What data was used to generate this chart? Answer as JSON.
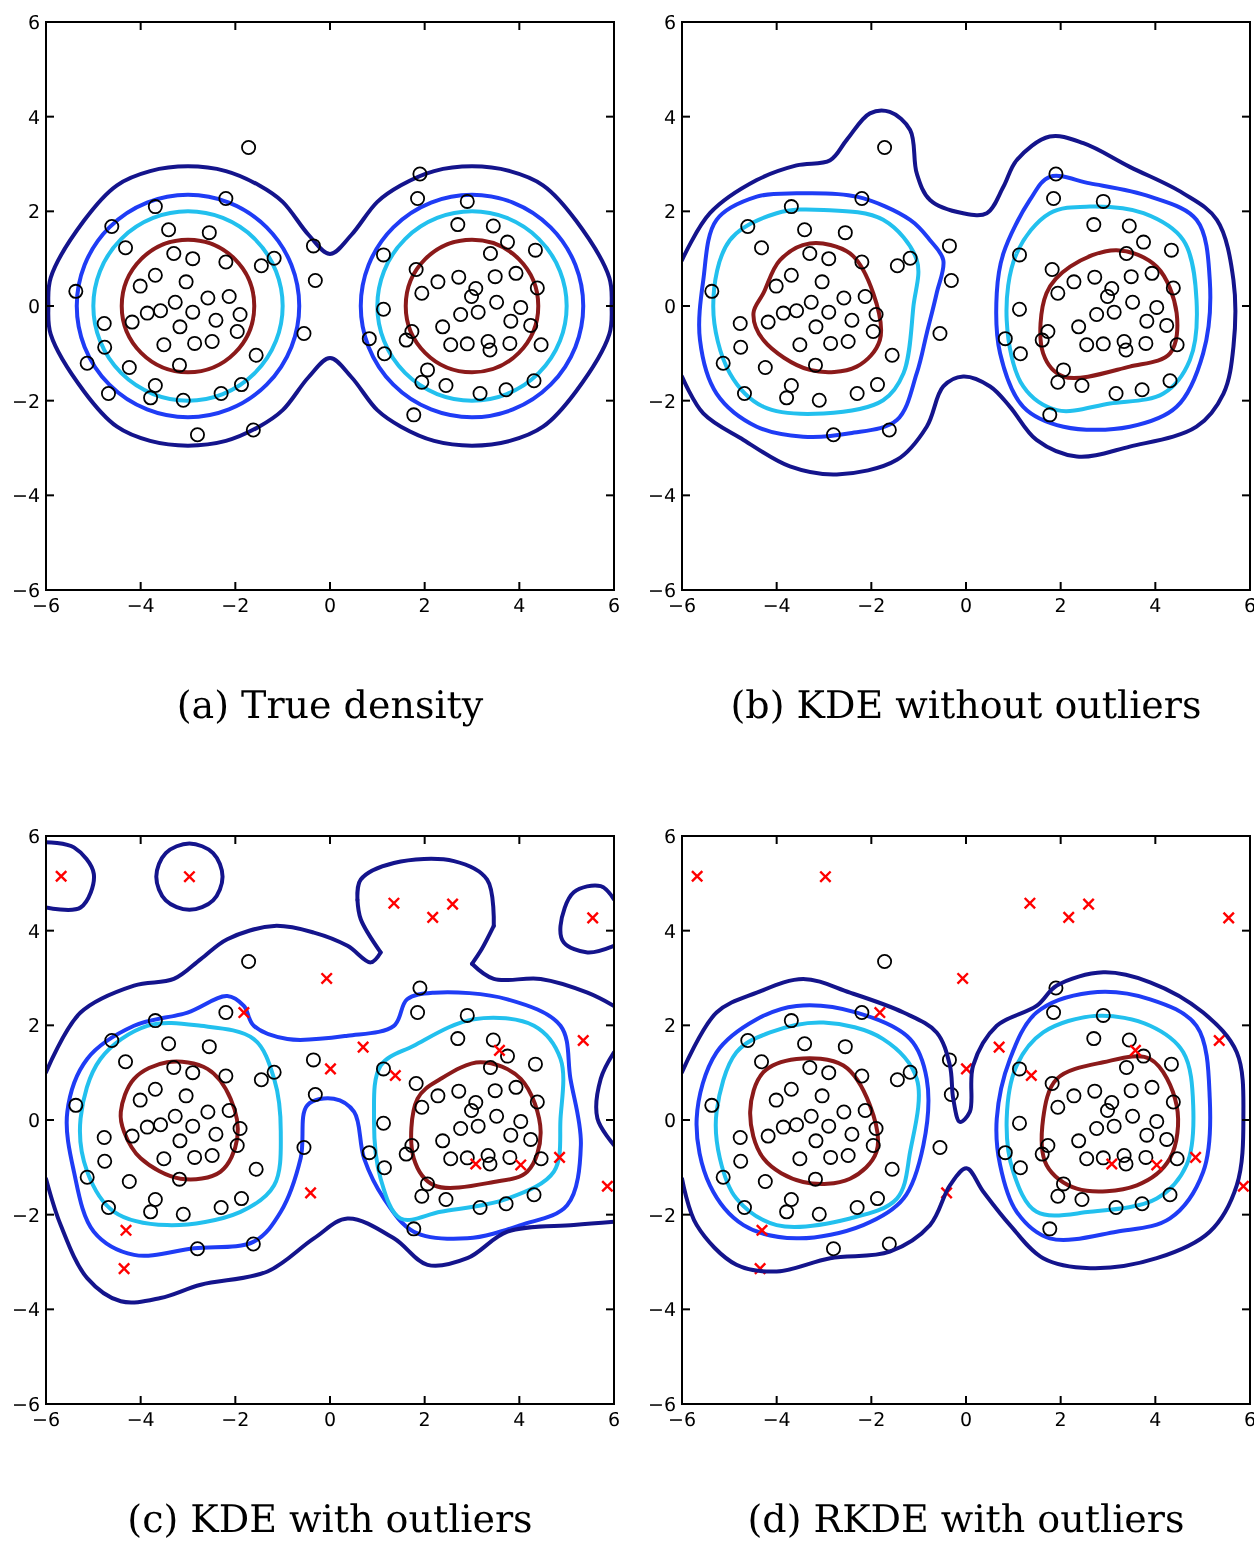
{
  "chart_data": [
    {
      "type": "scatter",
      "title": "(a) True density",
      "xlim": [
        -6,
        6
      ],
      "ylim": [
        -6,
        6
      ],
      "xticks": [
        -6,
        -4,
        -2,
        0,
        2,
        4,
        6
      ],
      "yticks": [
        -6,
        -4,
        -2,
        0,
        2,
        4,
        6
      ],
      "series": [
        {
          "marker": "circle",
          "color": "#000000",
          "x": [
            -1.72,
            -5.37,
            -5.13,
            -4.68,
            -4.76,
            -4.77,
            -4.61,
            -4.32,
            -3.69,
            -2.2,
            -1.18,
            -1.45,
            -0.35,
            -0.31,
            -0.55,
            -1.56,
            -1.87,
            -2.3,
            -2.8,
            -1.62,
            -3.1,
            -3.79,
            -3.69,
            -4.24,
            -4.18,
            -4.01,
            -3.69,
            -3.41,
            -3.3,
            -2.9,
            -2.55,
            -2.2,
            -2.13,
            -2.58,
            -3.04,
            -2.9,
            -3.17,
            -3.51,
            -2.86,
            -2.49,
            -1.96,
            -3.18,
            -3.58,
            -3.86,
            -3.27,
            -2.41,
            -1.9,
            1.9,
            1.85,
            2.9,
            2.7,
            3.45,
            3.75,
            4.34,
            4.38,
            4.46,
            4.31,
            3.72,
            3.17,
            2.45,
            1.94,
            1.77,
            1.15,
            0.83,
            1.13,
            1.13,
            1.82,
            1.73,
            1.94,
            2.28,
            2.72,
            3.08,
            3.49,
            3.93,
            4.03,
            4.24,
            3.8,
            3.34,
            2.9,
            2.55,
            2.38,
            2.76,
            3.13,
            2.99,
            3.52,
            3.82,
            3.39,
            3.38,
            2.06,
            1.61
          ],
          "values": [
            3.35,
            0.31,
            -1.21,
            -1.85,
            -0.87,
            -0.37,
            1.68,
            1.23,
            2.1,
            2.27,
            1.01,
            0.85,
            1.27,
            0.54,
            -0.58,
            -1.04,
            -1.66,
            -1.85,
            -2.72,
            -2.62,
            -1.99,
            -1.94,
            -1.68,
            -1.3,
            -0.34,
            0.42,
            0.65,
            1.61,
            1.11,
            1.0,
            1.55,
            0.93,
            0.2,
            0.17,
            0.51,
            -0.13,
            -0.44,
            -0.82,
            -0.79,
            -0.75,
            -0.54,
            -1.25,
            -0.1,
            -0.15,
            0.08,
            -0.3,
            -0.18,
            2.79,
            2.27,
            2.21,
            1.72,
            1.69,
            1.35,
            1.18,
            0.38,
            -0.82,
            -1.58,
            -1.77,
            -1.85,
            -1.68,
            -1.61,
            -2.3,
            -1.01,
            -0.69,
            -0.07,
            1.08,
            0.77,
            -0.54,
            0.27,
            0.51,
            0.61,
            0.37,
            0.62,
            0.69,
            -0.03,
            -0.41,
            -0.79,
            -0.75,
            -0.8,
            -0.82,
            -0.44,
            -0.18,
            -0.13,
            0.2,
            0.08,
            -0.32,
            1.11,
            -0.93,
            -1.35,
            -0.72
          ]
        }
      ]
    },
    {
      "type": "scatter",
      "title": "(b) KDE without outliers",
      "xlim": [
        -6,
        6
      ],
      "ylim": [
        -6,
        6
      ],
      "xticks": [
        -6,
        -4,
        -2,
        0,
        2,
        4,
        6
      ],
      "yticks": [
        -6,
        -4,
        -2,
        0,
        2,
        4,
        6
      ],
      "series": [
        {
          "type": "line",
          "color": "#14148c",
          "x": [
            -6,
            -5.41,
            -4.42,
            -3.58,
            -2.87,
            -2.52,
            -2.03,
            -1.61,
            -1.18,
            -1.04,
            -0.76,
            -0.06,
            0.44,
            0.79,
            1.07,
            1.77,
            2.48,
            3.46,
            4.59,
            5.3,
            5.65,
            5.65,
            5.44,
            4.87,
            3.46,
            2.34,
            1.49,
            0.93,
            0.51,
            -0.06,
            -0.48,
            -0.83,
            -1.46,
            -2.73,
            -3.72,
            -4.7,
            -5.55,
            -6
          ],
          "values": [
            0.97,
            1.96,
            2.66,
            2.97,
            3.08,
            3.51,
            4.07,
            4.1,
            3.72,
            2.8,
            2.24,
            1.96,
            1.96,
            2.52,
            3.08,
            3.58,
            3.44,
            2.94,
            2.38,
            1.82,
            0.55,
            -0.86,
            -1.85,
            -2.55,
            -2.97,
            -3.18,
            -2.83,
            -2.13,
            -1.7,
            -1.49,
            -1.7,
            -2.55,
            -3.25,
            -3.56,
            -3.39,
            -2.83,
            -2.27,
            -1.49
          ]
        },
        {
          "marker": "circle",
          "color": "#000000",
          "x": [
            -1.72,
            -5.37,
            -5.13,
            -4.68,
            -4.76,
            -4.77,
            -4.61,
            -4.32,
            -3.69,
            -2.2,
            -1.18,
            -1.45,
            -0.35,
            -0.31,
            -0.55,
            -1.56,
            -1.87,
            -2.3,
            -2.8,
            -1.62,
            -3.1,
            -3.79,
            -3.69,
            -4.24,
            -4.18,
            -4.01,
            -3.69,
            -3.41,
            -3.3,
            -2.9,
            -2.55,
            -2.2,
            -2.13,
            -2.58,
            -3.04,
            -2.9,
            -3.17,
            -3.51,
            -2.86,
            -2.49,
            -1.96,
            -3.18,
            -3.58,
            -3.86,
            -3.27,
            -2.41,
            -1.9,
            1.9,
            1.85,
            2.9,
            2.7,
            3.45,
            3.75,
            4.34,
            4.38,
            4.46,
            4.31,
            3.72,
            3.17,
            2.45,
            1.94,
            1.77,
            1.15,
            0.83,
            1.13,
            1.13,
            1.82,
            1.73,
            1.94,
            2.28,
            2.72,
            3.08,
            3.49,
            3.93,
            4.03,
            4.24,
            3.8,
            3.34,
            2.9,
            2.55,
            2.38,
            2.76,
            3.13,
            2.99,
            3.52,
            3.82,
            3.39,
            3.38,
            2.06,
            1.61
          ],
          "values": [
            3.35,
            0.31,
            -1.21,
            -1.85,
            -0.87,
            -0.37,
            1.68,
            1.23,
            2.1,
            2.27,
            1.01,
            0.85,
            1.27,
            0.54,
            -0.58,
            -1.04,
            -1.66,
            -1.85,
            -2.72,
            -2.62,
            -1.99,
            -1.94,
            -1.68,
            -1.3,
            -0.34,
            0.42,
            0.65,
            1.61,
            1.11,
            1.0,
            1.55,
            0.93,
            0.2,
            0.17,
            0.51,
            -0.13,
            -0.44,
            -0.82,
            -0.79,
            -0.75,
            -0.54,
            -1.25,
            -0.1,
            -0.15,
            0.08,
            -0.3,
            -0.18,
            2.79,
            2.27,
            2.21,
            1.72,
            1.69,
            1.35,
            1.18,
            0.38,
            -0.82,
            -1.58,
            -1.77,
            -1.85,
            -1.68,
            -1.61,
            -2.3,
            -1.01,
            -0.69,
            -0.07,
            1.08,
            0.77,
            -0.54,
            0.27,
            0.51,
            0.61,
            0.37,
            0.62,
            0.69,
            -0.03,
            -0.41,
            -0.79,
            -0.75,
            -0.8,
            -0.82,
            -0.44,
            -0.18,
            -0.13,
            0.2,
            0.08,
            -0.32,
            1.11,
            -0.93,
            -1.35,
            -0.72
          ]
        }
      ]
    },
    {
      "type": "scatter",
      "title": "(c) KDE with outliers",
      "xlim": [
        -6,
        6
      ],
      "ylim": [
        -6,
        6
      ],
      "xticks": [
        -6,
        -4,
        -2,
        0,
        2,
        4,
        6
      ],
      "yticks": [
        -6,
        -4,
        -2,
        0,
        2,
        4,
        6
      ],
      "series": [
        {
          "type": "line",
          "color": "#14148c",
          "x": [
            -6,
            -5.41,
            -4.99,
            -5.27,
            -6
          ],
          "values": [
            5.87,
            5.76,
            5.2,
            4.49,
            4.49
          ]
        },
        {
          "type": "line",
          "color": "#14148c",
          "x": [
            6,
            5.72,
            5.15,
            4.87,
            4.94,
            5.44,
            6
          ],
          "values": [
            4.66,
            4.94,
            4.81,
            4.1,
            3.75,
            3.54,
            3.68
          ]
        },
        {
          "type": "line",
          "color": "#14148c",
          "x": [
            -6,
            -5.27,
            -4.14,
            -3.3,
            -2.73,
            -2.17,
            -1.18,
            -0.34,
            0.37,
            0.86,
            1.07
          ],
          "values": [
            1.01,
            2.27,
            2.84,
            2.98,
            3.4,
            3.82,
            4.1,
            3.96,
            3.68,
            3.33,
            3.54
          ]
        },
        {
          "type": "line",
          "color": "#14148c",
          "x": [
            0.58,
            0.65,
            1.07
          ],
          "values": [
            4.65,
            4.24,
            3.54
          ]
        },
        {
          "type": "line",
          "color": "#14148c",
          "x": [
            0.58,
            0.65,
            1.35,
            2.62,
            3.32,
            3.46
          ],
          "values": [
            4.65,
            5.08,
            5.43,
            5.47,
            5.08,
            4.1
          ]
        },
        {
          "type": "line",
          "color": "#14148c",
          "x": [
            3.0,
            3.2,
            3.46
          ],
          "values": [
            3.3,
            3.6,
            4.1
          ]
        },
        {
          "type": "line",
          "color": "#14148c",
          "x": [
            3.0,
            3.46,
            4.45,
            5.44,
            6
          ],
          "values": [
            3.3,
            2.98,
            2.98,
            2.69,
            2.41
          ]
        },
        {
          "type": "line",
          "color": "#14148c",
          "x": [
            6,
            5.72,
            5.65,
            6
          ],
          "values": [
            1.43,
            0.87,
            0.03,
            -0.53
          ]
        },
        {
          "type": "line",
          "color": "#14148c",
          "x": [
            6,
            5.15,
            3.75,
            2.9,
            2.06,
            1.35,
            0.37,
            -0.34,
            -1.32,
            -2.73,
            -3.58,
            -4.42,
            -5.13,
            -5.69,
            -6
          ],
          "values": [
            -2.15,
            -2.22,
            -2.36,
            -2.92,
            -3.06,
            -2.5,
            -2.08,
            -2.5,
            -3.2,
            -3.48,
            -3.76,
            -3.83,
            -3.34,
            -2.22,
            -1.24
          ]
        },
        {
          "marker": "circle",
          "color": "#000000",
          "x": [
            -1.72,
            -5.37,
            -5.13,
            -4.68,
            -4.76,
            -4.77,
            -4.61,
            -4.32,
            -3.69,
            -2.2,
            -1.18,
            -1.45,
            -0.35,
            -0.31,
            -0.55,
            -1.56,
            -1.87,
            -2.3,
            -2.8,
            -1.62,
            -3.1,
            -3.79,
            -3.69,
            -4.24,
            -4.18,
            -4.01,
            -3.69,
            -3.41,
            -3.3,
            -2.9,
            -2.55,
            -2.2,
            -2.13,
            -2.58,
            -3.04,
            -2.9,
            -3.17,
            -3.51,
            -2.86,
            -2.49,
            -1.96,
            -3.18,
            -3.58,
            -3.86,
            -3.27,
            -2.41,
            -1.9,
            1.9,
            1.85,
            2.9,
            2.7,
            3.45,
            3.75,
            4.34,
            4.38,
            4.46,
            4.31,
            3.72,
            3.17,
            2.45,
            1.94,
            1.77,
            1.15,
            0.83,
            1.13,
            1.13,
            1.82,
            1.73,
            1.94,
            2.28,
            2.72,
            3.08,
            3.49,
            3.93,
            4.03,
            4.24,
            3.8,
            3.34,
            2.9,
            2.55,
            2.38,
            2.76,
            3.13,
            2.99,
            3.52,
            3.82,
            3.39,
            3.38,
            2.06,
            1.61
          ],
          "values": [
            3.35,
            0.31,
            -1.21,
            -1.85,
            -0.87,
            -0.37,
            1.68,
            1.23,
            2.1,
            2.27,
            1.01,
            0.85,
            1.27,
            0.54,
            -0.58,
            -1.04,
            -1.66,
            -1.85,
            -2.72,
            -2.62,
            -1.99,
            -1.94,
            -1.68,
            -1.3,
            -0.34,
            0.42,
            0.65,
            1.61,
            1.11,
            1.0,
            1.55,
            0.93,
            0.2,
            0.17,
            0.51,
            -0.13,
            -0.44,
            -0.82,
            -0.79,
            -0.75,
            -0.54,
            -1.25,
            -0.1,
            -0.15,
            0.08,
            -0.3,
            -0.18,
            2.79,
            2.27,
            2.21,
            1.72,
            1.69,
            1.35,
            1.18,
            0.38,
            -0.82,
            -1.58,
            -1.77,
            -1.85,
            -1.68,
            -1.61,
            -2.3,
            -1.01,
            -0.69,
            -0.07,
            1.08,
            0.77,
            -0.54,
            0.27,
            0.51,
            0.61,
            0.37,
            0.62,
            0.69,
            -0.03,
            -0.41,
            -0.79,
            -0.75,
            -0.8,
            -0.82,
            -0.44,
            -0.18,
            -0.13,
            0.2,
            0.08,
            -0.32,
            1.11,
            -0.93,
            -1.35,
            -0.72
          ]
        },
        {
          "marker": "cross",
          "color": "#ff0000",
          "x": [
            -5.68,
            -2.97,
            1.35,
            2.17,
            2.59,
            5.55,
            -0.07,
            -1.82,
            0.7,
            0.01,
            1.38,
            3.58,
            5.35,
            4.85,
            4.03,
            3.08,
            5.86,
            -0.41,
            -4.31,
            -4.35
          ],
          "values": [
            5.15,
            5.14,
            4.58,
            4.28,
            4.56,
            4.27,
            2.99,
            2.27,
            1.54,
            1.08,
            0.94,
            1.47,
            1.68,
            -0.79,
            -0.95,
            -0.93,
            -1.4,
            -1.54,
            -2.33,
            -3.14
          ]
        }
      ]
    },
    {
      "type": "scatter",
      "title": "(d) RKDE with outliers",
      "xlim": [
        -6,
        6
      ],
      "ylim": [
        -6,
        6
      ],
      "xticks": [
        -6,
        -4,
        -2,
        0,
        2,
        4,
        6
      ],
      "yticks": [
        -6,
        -4,
        -2,
        0,
        2,
        4,
        6
      ],
      "series": [
        {
          "type": "line",
          "color": "#14148c",
          "x": [
            -6,
            -5.27,
            -4.42,
            -3.44,
            -2.45,
            -1.32,
            -0.62,
            -0.34,
            -0.27,
            -0.13,
            0.08,
            0.15,
            0.65,
            1.49,
            1.92,
            2.9,
            3.89,
            5.01,
            5.72,
            5.86,
            5.72,
            5.15,
            4.03,
            2.62,
            1.63,
            0.93,
            0.37,
            0.01,
            -0.34,
            -0.76,
            -1.61,
            -2.87,
            -4.0,
            -4.85,
            -5.69,
            -6
          ],
          "values": [
            1.01,
            2.27,
            2.69,
            2.98,
            2.69,
            2.27,
            1.85,
            1.15,
            0.45,
            -0.04,
            0.17,
            1.15,
            1.99,
            2.41,
            2.84,
            3.12,
            2.91,
            2.27,
            1.43,
            0.03,
            -1.38,
            -2.36,
            -2.92,
            -3.13,
            -2.92,
            -2.22,
            -1.52,
            -1.02,
            -1.38,
            -2.22,
            -2.78,
            -2.92,
            -3.2,
            -3.06,
            -2.22,
            -1.24
          ]
        },
        {
          "marker": "circle",
          "color": "#000000",
          "x": [
            -1.72,
            -5.37,
            -5.13,
            -4.68,
            -4.76,
            -4.77,
            -4.61,
            -4.32,
            -3.69,
            -2.2,
            -1.18,
            -1.45,
            -0.35,
            -0.31,
            -0.55,
            -1.56,
            -1.87,
            -2.3,
            -2.8,
            -1.62,
            -3.1,
            -3.79,
            -3.69,
            -4.24,
            -4.18,
            -4.01,
            -3.69,
            -3.41,
            -3.3,
            -2.9,
            -2.55,
            -2.2,
            -2.13,
            -2.58,
            -3.04,
            -2.9,
            -3.17,
            -3.51,
            -2.86,
            -2.49,
            -1.96,
            -3.18,
            -3.58,
            -3.86,
            -3.27,
            -2.41,
            -1.9,
            1.9,
            1.85,
            2.9,
            2.7,
            3.45,
            3.75,
            4.34,
            4.38,
            4.46,
            4.31,
            3.72,
            3.17,
            2.45,
            1.94,
            1.77,
            1.15,
            0.83,
            1.13,
            1.13,
            1.82,
            1.73,
            1.94,
            2.28,
            2.72,
            3.08,
            3.49,
            3.93,
            4.03,
            4.24,
            3.8,
            3.34,
            2.9,
            2.55,
            2.38,
            2.76,
            3.13,
            2.99,
            3.52,
            3.82,
            3.39,
            3.38,
            2.06,
            1.61
          ],
          "values": [
            3.35,
            0.31,
            -1.21,
            -1.85,
            -0.87,
            -0.37,
            1.68,
            1.23,
            2.1,
            2.27,
            1.01,
            0.85,
            1.27,
            0.54,
            -0.58,
            -1.04,
            -1.66,
            -1.85,
            -2.72,
            -2.62,
            -1.99,
            -1.94,
            -1.68,
            -1.3,
            -0.34,
            0.42,
            0.65,
            1.61,
            1.11,
            1.0,
            1.55,
            0.93,
            0.2,
            0.17,
            0.51,
            -0.13,
            -0.44,
            -0.82,
            -0.79,
            -0.75,
            -0.54,
            -1.25,
            -0.1,
            -0.15,
            0.08,
            -0.3,
            -0.18,
            2.79,
            2.27,
            2.21,
            1.72,
            1.69,
            1.35,
            1.18,
            0.38,
            -0.82,
            -1.58,
            -1.77,
            -1.85,
            -1.68,
            -1.61,
            -2.3,
            -1.01,
            -0.69,
            -0.07,
            1.08,
            0.77,
            -0.54,
            0.27,
            0.51,
            0.61,
            0.37,
            0.62,
            0.69,
            -0.03,
            -0.41,
            -0.79,
            -0.75,
            -0.8,
            -0.82,
            -0.44,
            -0.18,
            -0.13,
            0.2,
            0.08,
            -0.32,
            1.11,
            -0.93,
            -1.35,
            -0.72
          ]
        },
        {
          "marker": "cross",
          "color": "#ff0000",
          "x": [
            -5.68,
            -2.97,
            1.35,
            2.17,
            2.59,
            5.55,
            -0.07,
            -1.82,
            0.7,
            0.01,
            1.38,
            3.58,
            5.35,
            4.85,
            4.03,
            3.08,
            5.86,
            -0.41,
            -4.31,
            -4.35
          ],
          "values": [
            5.15,
            5.14,
            4.58,
            4.28,
            4.56,
            4.27,
            2.99,
            2.27,
            1.54,
            1.08,
            0.94,
            1.47,
            1.68,
            -0.79,
            -0.95,
            -0.93,
            -1.4,
            -1.54,
            -2.33,
            -3.14
          ]
        }
      ]
    }
  ]
}
